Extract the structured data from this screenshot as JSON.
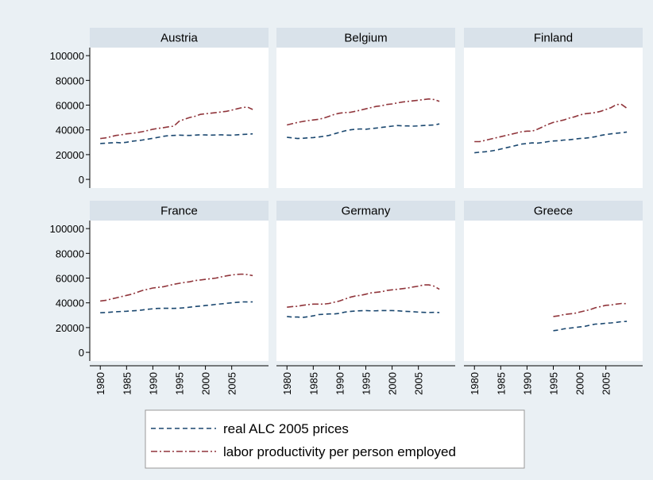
{
  "chart_data": {
    "type": "line",
    "x": [
      1980,
      1981,
      1982,
      1983,
      1984,
      1985,
      1986,
      1987,
      1988,
      1989,
      1990,
      1991,
      1992,
      1993,
      1994,
      1995,
      1996,
      1997,
      1998,
      1999,
      2000,
      2001,
      2002,
      2003,
      2004,
      2005,
      2006,
      2007,
      2008,
      2009
    ],
    "xlim": [
      1978,
      2012
    ],
    "xticks": [
      1980,
      1985,
      1990,
      1995,
      2000,
      2005
    ],
    "ylim": [
      -7000,
      106500
    ],
    "yticks": [
      0,
      20000,
      40000,
      60000,
      80000,
      100000
    ],
    "series": [
      {
        "name": "real ALC 2005 prices",
        "color": "#1a476f",
        "dash": "6 4"
      },
      {
        "name": "labor productivity per person employed",
        "color": "#90353b",
        "dash": "8 3 2 3"
      }
    ],
    "panels": [
      {
        "title": "Austria",
        "series": [
          {
            "values": [
              29000,
              29200,
              29500,
              29800,
              29500,
              30000,
              30800,
              31300,
              31800,
              32500,
              33200,
              34000,
              34800,
              35300,
              35500,
              35800,
              35600,
              35500,
              35800,
              36000,
              35900,
              35800,
              35900,
              36000,
              35800,
              35700,
              36000,
              36300,
              36500,
              36800
            ]
          },
          {
            "values": [
              33000,
              33500,
              34500,
              35500,
              36000,
              36800,
              37200,
              37800,
              38500,
              39500,
              40500,
              41200,
              41800,
              42500,
              43000,
              47000,
              48500,
              50000,
              51000,
              52500,
              53000,
              53500,
              54000,
              54500,
              55000,
              56000,
              57000,
              58000,
              58500,
              56500
            ]
          }
        ]
      },
      {
        "title": "Belgium",
        "series": [
          {
            "values": [
              34000,
              33500,
              33000,
              33200,
              33500,
              33800,
              34200,
              34800,
              35500,
              36800,
              38000,
              39200,
              40000,
              40500,
              40800,
              40500,
              41000,
              41500,
              42000,
              42500,
              43000,
              43500,
              43300,
              43200,
              43000,
              43200,
              43500,
              43800,
              44000,
              44800
            ]
          },
          {
            "values": [
              44000,
              45000,
              46000,
              46800,
              47500,
              48000,
              48500,
              49500,
              51000,
              52500,
              53500,
              54000,
              54200,
              55000,
              56000,
              57000,
              58000,
              59000,
              59500,
              60500,
              61000,
              61800,
              62500,
              63000,
              63500,
              64000,
              64500,
              65000,
              64500,
              63000
            ]
          }
        ]
      },
      {
        "title": "Finland",
        "series": [
          {
            "values": [
              21500,
              22000,
              22300,
              22800,
              23500,
              24500,
              25500,
              26500,
              27500,
              28500,
              29000,
              29500,
              29300,
              29800,
              30500,
              31000,
              31200,
              31800,
              32000,
              32500,
              33000,
              33300,
              33800,
              34500,
              35500,
              36200,
              36800,
              37300,
              37700,
              38300
            ]
          },
          {
            "values": [
              30500,
              30500,
              31500,
              32500,
              33500,
              34500,
              35500,
              36500,
              37500,
              38500,
              39000,
              39000,
              40500,
              42500,
              44500,
              46000,
              47000,
              48000,
              49500,
              50500,
              52000,
              53000,
              53500,
              54000,
              55000,
              56500,
              58000,
              60500,
              60500,
              57500
            ]
          }
        ]
      },
      {
        "title": "France",
        "series": [
          {
            "values": [
              32000,
              32200,
              32500,
              32800,
              33000,
              33200,
              33500,
              33800,
              34200,
              34800,
              35200,
              35500,
              35600,
              35600,
              35500,
              35700,
              36000,
              36500,
              37000,
              37400,
              37800,
              38200,
              38800,
              39200,
              39600,
              40000,
              40400,
              40800,
              40700,
              40800
            ]
          },
          {
            "values": [
              41500,
              42000,
              43000,
              44000,
              45000,
              46000,
              47000,
              48500,
              50000,
              51000,
              52000,
              52500,
              53000,
              54000,
              55000,
              55800,
              56500,
              57000,
              58000,
              58500,
              59000,
              59500,
              60000,
              61000,
              61800,
              62500,
              63000,
              63200,
              62800,
              62000
            ]
          }
        ]
      },
      {
        "title": "Germany",
        "series": [
          {
            "values": [
              29000,
              28500,
              28500,
              28200,
              28800,
              29500,
              30500,
              30800,
              31000,
              31000,
              31500,
              32500,
              33000,
              33400,
              33600,
              33800,
              33500,
              33600,
              33800,
              33800,
              33800,
              33600,
              33300,
              33000,
              32800,
              32500,
              32300,
              32200,
              32300,
              32200
            ]
          },
          {
            "values": [
              36500,
              37000,
              37200,
              38000,
              38500,
              39000,
              39000,
              39000,
              39500,
              40500,
              41500,
              43000,
              44500,
              45500,
              46000,
              47000,
              48000,
              48500,
              49000,
              50000,
              50500,
              51000,
              51500,
              52000,
              52800,
              53500,
              54500,
              54500,
              53500,
              51000
            ]
          }
        ]
      },
      {
        "title": "Greece",
        "series": [
          {
            "values": [
              null,
              null,
              null,
              null,
              null,
              null,
              null,
              null,
              null,
              null,
              null,
              null,
              null,
              null,
              null,
              17500,
              18000,
              19000,
              19500,
              20000,
              20500,
              21000,
              22000,
              22800,
              23000,
              23500,
              23800,
              24200,
              24800,
              25000
            ]
          },
          {
            "values": [
              null,
              null,
              null,
              null,
              null,
              null,
              null,
              null,
              null,
              null,
              null,
              null,
              null,
              null,
              null,
              29000,
              29500,
              30500,
              31000,
              31500,
              32500,
              33500,
              34500,
              36000,
              37000,
              38000,
              38300,
              39000,
              39500,
              39300
            ]
          }
        ]
      }
    ]
  }
}
